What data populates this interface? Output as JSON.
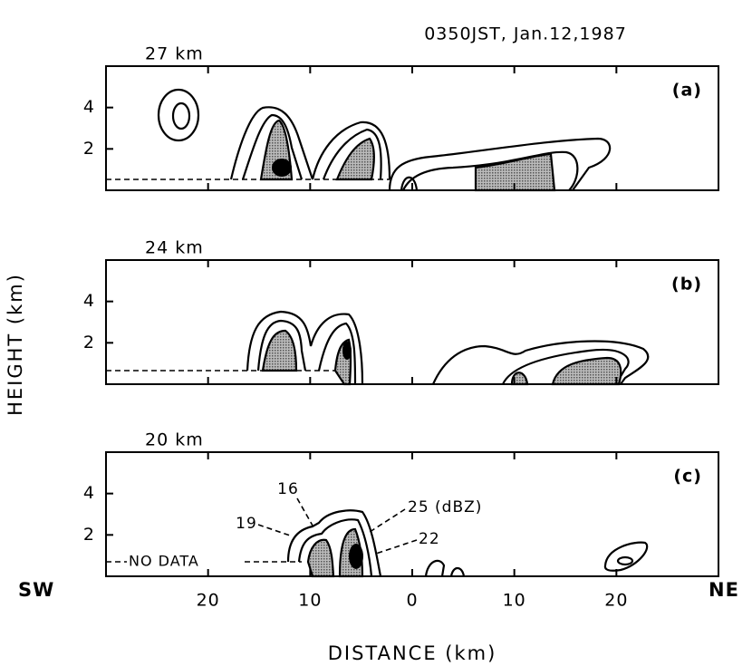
{
  "chart_data": {
    "type": "contour",
    "title": "0350JST, Jan.12,1987",
    "x_label": "DISTANCE   (km)",
    "y_label": "HEIGHT   (km)",
    "x_left_label": "SW",
    "x_right_label": "NE",
    "xlim": [
      -30,
      30
    ],
    "xticks": [
      {
        "value": -20,
        "label": "20"
      },
      {
        "value": -10,
        "label": "10"
      },
      0,
      10,
      20
    ],
    "ylim": [
      0,
      6
    ],
    "yticks": [
      2,
      4
    ],
    "panels": [
      {
        "title": "27 km",
        "tag": "(a)"
      },
      {
        "title": "24 km",
        "tag": "(b)"
      },
      {
        "title": "20 km",
        "tag": "(c)"
      }
    ],
    "annotations": [
      "16",
      "19",
      "22",
      "25 (dBZ)",
      "NO DATA"
    ]
  }
}
